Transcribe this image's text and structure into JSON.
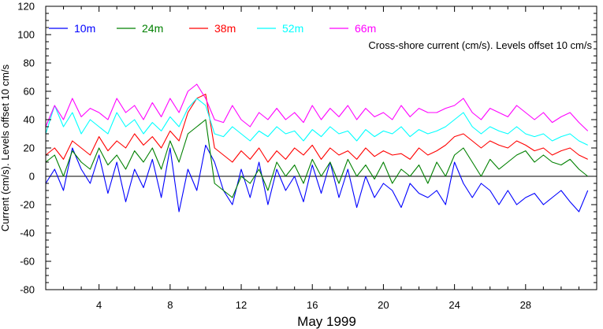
{
  "chart_data": {
    "type": "line",
    "ylabel": "Current (cm/s). Levels offset 10 cm/s",
    "xlabel": "May 1999",
    "annotation": "Cross-shore current (cm/s). Levels offset 10 cm/s",
    "ylim": [
      -80,
      120
    ],
    "yticks": [
      -80,
      -60,
      -40,
      -20,
      0,
      20,
      40,
      60,
      80,
      100,
      120
    ],
    "ytick_labels": [
      "-80",
      "-60",
      "-40",
      "-20",
      "0",
      "20",
      "40",
      "60",
      "80",
      "100",
      "120"
    ],
    "xlim": [
      1,
      32
    ],
    "xticks": [
      4,
      8,
      12,
      16,
      20,
      24,
      28
    ],
    "xtick_labels": [
      "4",
      "8",
      "12",
      "16",
      "20",
      "24",
      "28"
    ],
    "legend_position": "top-left",
    "zero_line": true,
    "series": [
      {
        "name": "10m",
        "color": "#0000ff",
        "x": [
          1,
          1.5,
          2,
          2.5,
          3,
          3.5,
          4,
          4.5,
          5,
          5.5,
          6,
          6.5,
          7,
          7.5,
          8,
          8.5,
          9,
          9.5,
          10,
          10.5,
          11,
          11.5,
          12,
          12.5,
          13,
          13.5,
          14,
          14.5,
          15,
          15.5,
          16,
          16.5,
          17,
          17.5,
          18,
          18.5,
          19,
          19.5,
          20,
          20.5,
          21,
          21.5,
          22,
          22.5,
          23,
          23.5,
          24,
          24.5,
          25,
          25.5,
          26,
          26.5,
          27,
          27.5,
          28,
          28.5,
          29,
          29.5,
          30,
          30.5,
          31,
          31.5
        ],
        "y": [
          -5,
          5,
          -10,
          20,
          5,
          -5,
          15,
          -12,
          10,
          -18,
          5,
          -8,
          12,
          -15,
          20,
          -25,
          5,
          -10,
          22,
          10,
          -10,
          -20,
          5,
          -15,
          10,
          -20,
          5,
          -10,
          0,
          -18,
          8,
          -12,
          10,
          -15,
          5,
          -22,
          0,
          -15,
          -5,
          -10,
          -22,
          -5,
          -12,
          -15,
          -10,
          -20,
          10,
          -5,
          -15,
          -5,
          -10,
          -20,
          -10,
          -20,
          -15,
          -12,
          -20,
          -15,
          -10,
          -18,
          -25,
          -10
        ]
      },
      {
        "name": "24m",
        "color": "#008000",
        "x": [
          1,
          1.5,
          2,
          2.5,
          3,
          3.5,
          4,
          4.5,
          5,
          5.5,
          6,
          6.5,
          7,
          7.5,
          8,
          8.5,
          9,
          9.5,
          10,
          10.5,
          11,
          11.5,
          12,
          12.5,
          13,
          13.5,
          14,
          14.5,
          15,
          15.5,
          16,
          16.5,
          17,
          17.5,
          18,
          18.5,
          19,
          19.5,
          20,
          20.5,
          21,
          21.5,
          22,
          22.5,
          23,
          23.5,
          24,
          24.5,
          25,
          25.5,
          26,
          26.5,
          27,
          27.5,
          28,
          28.5,
          29,
          29.5,
          30,
          30.5,
          31,
          31.5
        ],
        "y": [
          10,
          15,
          0,
          18,
          10,
          5,
          20,
          8,
          15,
          5,
          18,
          10,
          20,
          5,
          25,
          10,
          30,
          35,
          40,
          -5,
          -10,
          -15,
          0,
          -5,
          5,
          -10,
          10,
          0,
          8,
          -5,
          12,
          0,
          10,
          -5,
          12,
          0,
          8,
          -2,
          10,
          -5,
          5,
          0,
          8,
          -5,
          10,
          0,
          15,
          20,
          10,
          0,
          12,
          5,
          10,
          15,
          18,
          10,
          15,
          10,
          8,
          12,
          5,
          0
        ]
      },
      {
        "name": "38m",
        "color": "#ff0000",
        "x": [
          1,
          1.5,
          2,
          2.5,
          3,
          3.5,
          4,
          4.5,
          5,
          5.5,
          6,
          6.5,
          7,
          7.5,
          8,
          8.5,
          9,
          9.5,
          10,
          10.5,
          11,
          11.5,
          12,
          12.5,
          13,
          13.5,
          14,
          14.5,
          15,
          15.5,
          16,
          16.5,
          17,
          17.5,
          18,
          18.5,
          19,
          19.5,
          20,
          20.5,
          21,
          21.5,
          22,
          22.5,
          23,
          23.5,
          24,
          24.5,
          25,
          25.5,
          26,
          26.5,
          27,
          27.5,
          28,
          28.5,
          29,
          29.5,
          30,
          30.5,
          31,
          31.5
        ],
        "y": [
          15,
          20,
          12,
          25,
          20,
          15,
          28,
          18,
          25,
          20,
          30,
          22,
          28,
          20,
          32,
          25,
          45,
          55,
          58,
          20,
          15,
          10,
          18,
          12,
          20,
          10,
          18,
          12,
          20,
          15,
          22,
          12,
          20,
          15,
          18,
          12,
          20,
          14,
          18,
          15,
          16,
          12,
          20,
          15,
          18,
          22,
          28,
          30,
          25,
          20,
          25,
          22,
          20,
          25,
          22,
          18,
          20,
          15,
          18,
          20,
          15,
          12
        ]
      },
      {
        "name": "52m",
        "color": "#00ffff",
        "x": [
          1,
          1.5,
          2,
          2.5,
          3,
          3.5,
          4,
          4.5,
          5,
          5.5,
          6,
          6.5,
          7,
          7.5,
          8,
          8.5,
          9,
          9.5,
          10,
          10.5,
          11,
          11.5,
          12,
          12.5,
          13,
          13.5,
          14,
          14.5,
          15,
          15.5,
          16,
          16.5,
          17,
          17.5,
          18,
          18.5,
          19,
          19.5,
          20,
          20.5,
          21,
          21.5,
          22,
          22.5,
          23,
          23.5,
          24,
          24.5,
          25,
          25.5,
          26,
          26.5,
          27,
          27.5,
          28,
          28.5,
          29,
          29.5,
          30,
          30.5,
          31,
          31.5
        ],
        "y": [
          30,
          50,
          35,
          45,
          30,
          40,
          35,
          30,
          45,
          35,
          40,
          30,
          38,
          32,
          42,
          35,
          48,
          55,
          50,
          30,
          28,
          35,
          30,
          25,
          32,
          28,
          35,
          30,
          32,
          25,
          33,
          28,
          35,
          30,
          32,
          25,
          33,
          28,
          32,
          30,
          35,
          28,
          33,
          30,
          32,
          35,
          40,
          45,
          35,
          30,
          35,
          32,
          30,
          35,
          30,
          28,
          30,
          25,
          28,
          30,
          25,
          22
        ]
      },
      {
        "name": "66m",
        "color": "#ff00ff",
        "x": [
          1,
          1.5,
          2,
          2.5,
          3,
          3.5,
          4,
          4.5,
          5,
          5.5,
          6,
          6.5,
          7,
          7.5,
          8,
          8.5,
          9,
          9.5,
          10,
          10.5,
          11,
          11.5,
          12,
          12.5,
          13,
          13.5,
          14,
          14.5,
          15,
          15.5,
          16,
          16.5,
          17,
          17.5,
          18,
          18.5,
          19,
          19.5,
          20,
          20.5,
          21,
          21.5,
          22,
          22.5,
          23,
          23.5,
          24,
          24.5,
          25,
          25.5,
          26,
          26.5,
          27,
          27.5,
          28,
          28.5,
          29,
          29.5,
          30,
          30.5,
          31,
          31.5
        ],
        "y": [
          35,
          50,
          40,
          55,
          42,
          48,
          45,
          40,
          55,
          45,
          50,
          40,
          52,
          42,
          55,
          45,
          60,
          65,
          55,
          40,
          38,
          50,
          40,
          35,
          45,
          40,
          48,
          40,
          45,
          38,
          50,
          40,
          48,
          42,
          50,
          40,
          48,
          42,
          45,
          40,
          50,
          42,
          48,
          45,
          45,
          48,
          50,
          55,
          45,
          40,
          48,
          45,
          42,
          50,
          45,
          40,
          45,
          38,
          42,
          45,
          38,
          32
        ]
      }
    ]
  }
}
